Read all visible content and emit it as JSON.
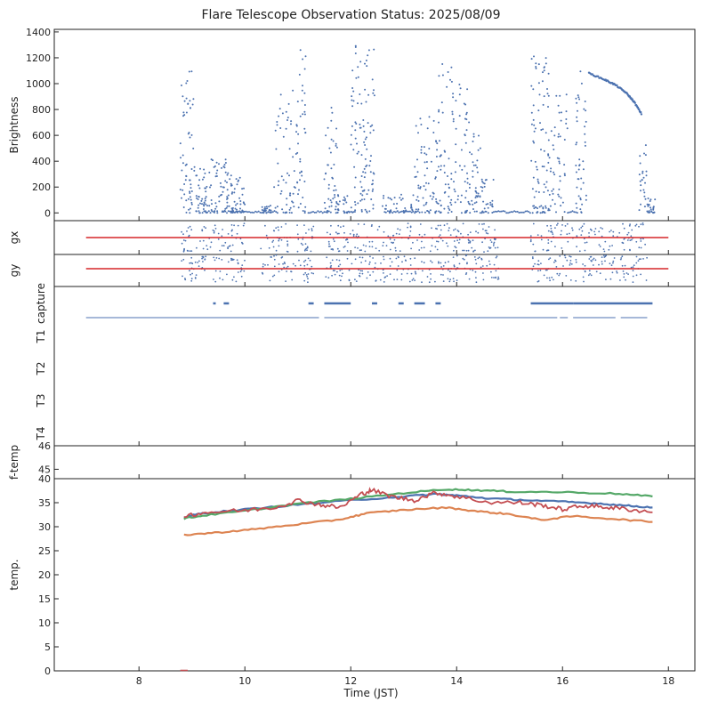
{
  "title": "Flare Telescope Observation Status: 2025/08/09",
  "xlabel": "Time (JST)",
  "x_ticks": [
    8,
    10,
    12,
    14,
    16,
    18
  ],
  "colors": {
    "blue": "#4c72b0",
    "red": "#d62728",
    "green": "#55a868",
    "orange": "#dd8452",
    "salmon": "#c44e52",
    "axis": "#222222"
  },
  "chart_data": [
    {
      "panel": "brightness",
      "type": "scatter",
      "ylabel": "Brightness",
      "xlim": [
        6.4,
        18.5
      ],
      "ylim": [
        -60,
        1420
      ],
      "y_ticks": [
        0,
        200,
        400,
        600,
        800,
        1000,
        1200,
        1400
      ],
      "bursts": [
        {
          "x0": 8.78,
          "x1": 9.05,
          "peak": 1100,
          "density": 60
        },
        {
          "x0": 9.05,
          "x1": 9.35,
          "peak": 350,
          "density": 45
        },
        {
          "x0": 9.35,
          "x1": 9.75,
          "peak": 420,
          "density": 60
        },
        {
          "x0": 9.75,
          "x1": 10.0,
          "peak": 280,
          "density": 40
        },
        {
          "x0": 10.3,
          "x1": 10.5,
          "peak": 60,
          "density": 20
        },
        {
          "x0": 10.55,
          "x1": 10.95,
          "peak": 950,
          "density": 55
        },
        {
          "x0": 10.95,
          "x1": 11.15,
          "peak": 1280,
          "density": 45
        },
        {
          "x0": 11.5,
          "x1": 11.75,
          "peak": 860,
          "density": 45
        },
        {
          "x0": 11.75,
          "x1": 12.0,
          "peak": 160,
          "density": 25
        },
        {
          "x0": 12.0,
          "x1": 12.45,
          "peak": 1350,
          "density": 110
        },
        {
          "x0": 12.6,
          "x1": 13.2,
          "peak": 150,
          "density": 35
        },
        {
          "x0": 13.2,
          "x1": 13.65,
          "peak": 780,
          "density": 70
        },
        {
          "x0": 13.65,
          "x1": 13.95,
          "peak": 1160,
          "density": 60
        },
        {
          "x0": 13.95,
          "x1": 14.25,
          "peak": 1160,
          "density": 50
        },
        {
          "x0": 14.25,
          "x1": 14.45,
          "peak": 700,
          "density": 35
        },
        {
          "x0": 14.45,
          "x1": 14.7,
          "peak": 320,
          "density": 30
        },
        {
          "x0": 15.4,
          "x1": 15.75,
          "peak": 1220,
          "density": 90
        },
        {
          "x0": 15.75,
          "x1": 16.1,
          "peak": 1000,
          "density": 50
        },
        {
          "x0": 16.25,
          "x1": 16.45,
          "peak": 1100,
          "density": 45
        },
        {
          "x0": 17.45,
          "x1": 17.6,
          "peak": 560,
          "density": 25
        },
        {
          "x0": 17.6,
          "x1": 17.75,
          "peak": 140,
          "density": 25
        }
      ],
      "baseline": [
        [
          9.2,
          9.4
        ],
        [
          9.6,
          10.6
        ],
        [
          11.2,
          11.6
        ],
        [
          12.7,
          13.3
        ],
        [
          14.7,
          15.4
        ],
        [
          16.1,
          16.3
        ]
      ],
      "decay_curve": [
        [
          16.5,
          1080
        ],
        [
          16.8,
          1030
        ],
        [
          17.0,
          990
        ],
        [
          17.2,
          930
        ],
        [
          17.35,
          860
        ],
        [
          17.5,
          760
        ]
      ]
    },
    {
      "panel": "gx",
      "type": "scatter",
      "ylabel": "gx",
      "reference_line": {
        "x": [
          7.0,
          18.0
        ],
        "level": 0.5
      },
      "segments": [
        [
          8.8,
          10.0
        ],
        [
          10.3,
          11.3
        ],
        [
          11.5,
          12.5
        ],
        [
          12.5,
          14.8
        ],
        [
          15.4,
          16.2
        ],
        [
          16.25,
          17.6
        ]
      ]
    },
    {
      "panel": "gy",
      "type": "scatter",
      "ylabel": "gy",
      "reference_line": {
        "x": [
          7.0,
          18.0
        ],
        "level": 0.5
      },
      "segments": [
        [
          8.8,
          10.0
        ],
        [
          10.3,
          11.3
        ],
        [
          11.5,
          12.5
        ],
        [
          12.5,
          14.8
        ],
        [
          15.4,
          16.2
        ],
        [
          16.25,
          17.6
        ]
      ]
    },
    {
      "panel": "status",
      "type": "timeline",
      "rows": [
        "capture",
        "T1",
        "T2",
        "T3",
        "T4"
      ],
      "capture_intervals": [
        [
          9.4,
          9.45
        ],
        [
          9.6,
          9.7
        ],
        [
          11.2,
          11.3
        ],
        [
          11.5,
          12.0
        ],
        [
          12.4,
          12.5
        ],
        [
          12.9,
          13.0
        ],
        [
          13.2,
          13.4
        ],
        [
          13.6,
          13.7
        ],
        [
          15.4,
          16.2
        ],
        [
          16.2,
          17.7
        ]
      ],
      "t1_intervals": [
        [
          7.0,
          11.4
        ],
        [
          11.5,
          15.9
        ],
        [
          15.95,
          16.1
        ],
        [
          16.2,
          17.0
        ],
        [
          17.1,
          17.6
        ]
      ]
    },
    {
      "panel": "f-temp",
      "type": "line",
      "ylabel": "f-temp",
      "ylim": [
        44.6,
        46
      ],
      "y_ticks": [
        45,
        46
      ]
    },
    {
      "panel": "temperature",
      "type": "line",
      "ylabel": "temp.",
      "ylim": [
        0,
        40
      ],
      "y_ticks": [
        0,
        5,
        10,
        15,
        20,
        25,
        30,
        35,
        40
      ],
      "series": [
        {
          "color": "#4c72b0",
          "x": [
            8.85,
            9.2,
            10.0,
            11.0,
            12.0,
            13.0,
            13.6,
            14.0,
            14.6,
            15.2,
            16.0,
            16.6,
            17.2,
            17.7
          ],
          "y": [
            32,
            32.8,
            33.6,
            34.6,
            35.5,
            36.3,
            36.8,
            36.5,
            35.9,
            35.6,
            35.2,
            34.9,
            34.4,
            34.0
          ]
        },
        {
          "color": "#55a868",
          "x": [
            8.85,
            9.2,
            10.0,
            11.0,
            12.0,
            13.0,
            13.8,
            14.4,
            15.0,
            16.0,
            17.0,
            17.7
          ],
          "y": [
            31.7,
            32.3,
            33.3,
            34.8,
            35.8,
            37.0,
            37.8,
            37.6,
            37.3,
            37.2,
            36.9,
            36.3
          ]
        },
        {
          "color": "#dd8452",
          "x": [
            8.85,
            9.5,
            10.2,
            11.0,
            11.8,
            12.3,
            13.0,
            13.8,
            14.4,
            15.0,
            15.6,
            16.2,
            17.0,
            17.7
          ],
          "y": [
            28.3,
            28.8,
            29.5,
            30.5,
            31.5,
            32.8,
            33.5,
            34.0,
            33.2,
            32.6,
            31.4,
            32.2,
            31.6,
            31.0
          ]
        },
        {
          "color": "#c44e52",
          "x": [
            8.85,
            9.3,
            10.0,
            10.6,
            11.0,
            11.4,
            11.8,
            12.2,
            12.4,
            12.8,
            13.2,
            13.6,
            14.0,
            14.6,
            15.2,
            15.6,
            16.0,
            16.4,
            16.8,
            17.2,
            17.7
          ],
          "y": [
            32.3,
            33.0,
            33.4,
            34.1,
            35.5,
            34.6,
            34.0,
            36.8,
            37.6,
            36.2,
            35.5,
            37.1,
            36.3,
            35.1,
            35.0,
            34.5,
            33.6,
            34.4,
            34.1,
            33.7,
            33.0
          ]
        }
      ]
    }
  ]
}
